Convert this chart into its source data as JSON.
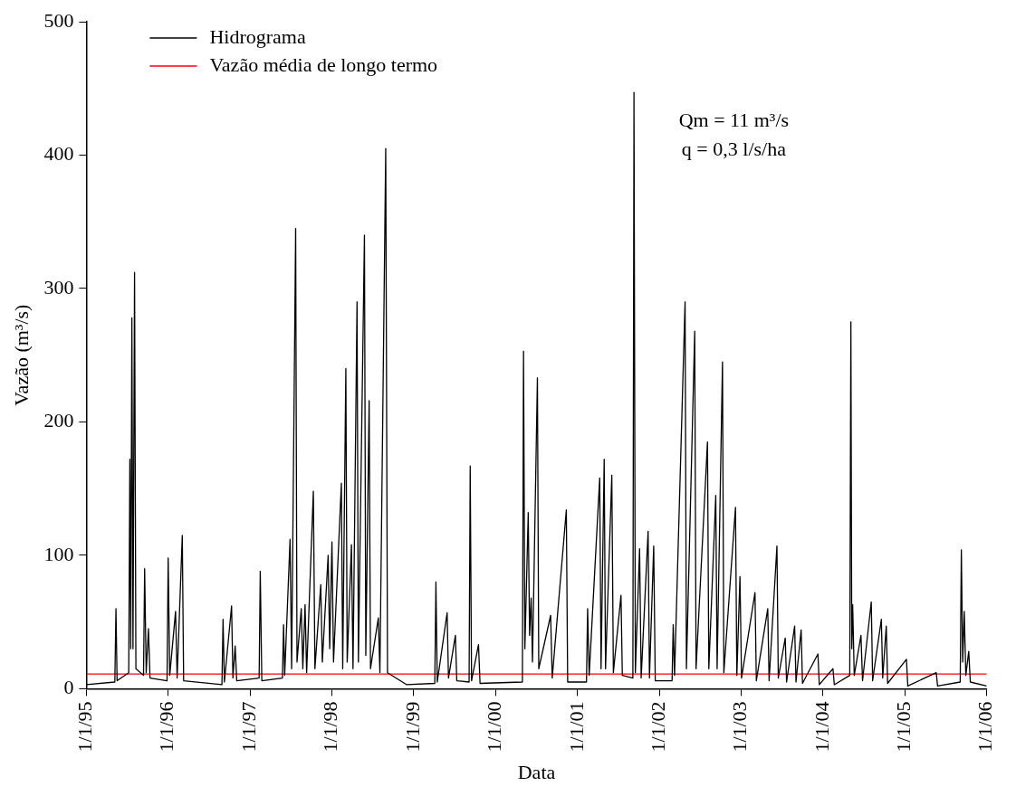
{
  "chart_data": {
    "type": "line",
    "xlabel": "Data",
    "ylabel": "Vazão (m³/s)",
    "annotations": [
      "Qm = 11 m³/s",
      "q = 0,3 l/s/ha"
    ],
    "xlim": [
      "1995-01-01",
      "2006-01-01"
    ],
    "xticks": [
      {
        "value": "1995-01-01",
        "label": "1/1/95"
      },
      {
        "value": "1996-01-01",
        "label": "1/1/96"
      },
      {
        "value": "1997-01-01",
        "label": "1/1/97"
      },
      {
        "value": "1998-01-01",
        "label": "1/1/98"
      },
      {
        "value": "1999-01-01",
        "label": "1/1/99"
      },
      {
        "value": "2000-01-01",
        "label": "1/1/00"
      },
      {
        "value": "2001-01-01",
        "label": "1/1/01"
      },
      {
        "value": "2002-01-01",
        "label": "1/1/02"
      },
      {
        "value": "2003-01-01",
        "label": "1/1/03"
      },
      {
        "value": "2004-01-01",
        "label": "1/1/04"
      },
      {
        "value": "2005-01-01",
        "label": "1/1/05"
      },
      {
        "value": "2006-01-01",
        "label": "1/1/06"
      }
    ],
    "ylim": [
      0,
      500
    ],
    "yticks": [
      0,
      100,
      200,
      300,
      400,
      500
    ],
    "grid": false,
    "legend": "top left",
    "marker": "none",
    "line_style": "solid",
    "series": [
      {
        "name": "Hidrograma",
        "color": "#000000",
        "x": [
          "1995-01-01",
          "1995-05-08",
          "1995-05-13",
          "1995-05-18",
          "1995-07-09",
          "1995-07-14",
          "1995-07-18",
          "1995-07-23",
          "1995-07-28",
          "1995-08-04",
          "1995-08-10",
          "1995-09-13",
          "1995-09-18",
          "1995-09-25",
          "1995-10-05",
          "1995-10-12",
          "1995-12-27",
          "1996-01-01",
          "1996-01-08",
          "1996-02-03",
          "1996-02-10",
          "1996-03-04",
          "1996-03-10",
          "1996-08-28",
          "1996-09-02",
          "1996-09-08",
          "1996-10-10",
          "1996-10-16",
          "1996-10-26",
          "1996-11-02",
          "1997-02-10",
          "1997-02-15",
          "1997-02-22",
          "1997-05-25",
          "1997-05-30",
          "1997-06-04",
          "1997-06-28",
          "1997-07-05",
          "1997-07-23",
          "1997-07-29",
          "1997-08-17",
          "1997-08-24",
          "1997-09-03",
          "1997-09-10",
          "1997-10-10",
          "1997-10-17",
          "1997-11-12",
          "1997-11-19",
          "1997-12-15",
          "1997-12-22",
          "1998-01-01",
          "1998-01-08",
          "1998-02-12",
          "1998-02-18",
          "1998-03-04",
          "1998-03-10",
          "1998-03-29",
          "1998-04-05",
          "1998-04-23",
          "1998-04-29",
          "1998-05-26",
          "1998-06-01",
          "1998-06-16",
          "1998-06-22",
          "1998-07-27",
          "1998-08-03",
          "1998-08-29",
          "1998-09-06",
          "1998-12-01",
          "1999-04-05",
          "1999-04-10",
          "1999-04-16",
          "1999-05-30",
          "1999-06-05",
          "1999-07-06",
          "1999-07-12",
          "1999-09-05",
          "1999-09-10",
          "1999-09-16",
          "1999-10-17",
          "1999-10-24",
          "2000-04-30",
          "2000-05-05",
          "2000-05-11",
          "2000-05-26",
          "2000-06-01",
          "2000-06-08",
          "2000-06-14",
          "2000-07-06",
          "2000-07-12",
          "2000-09-03",
          "2000-09-10",
          "2000-11-12",
          "2000-11-18",
          "2001-02-10",
          "2001-02-15",
          "2001-02-22",
          "2001-04-10",
          "2001-04-16",
          "2001-04-30",
          "2001-05-06",
          "2001-06-03",
          "2001-06-10",
          "2001-07-14",
          "2001-07-20",
          "2001-09-05",
          "2001-09-10",
          "2001-09-16",
          "2001-10-05",
          "2001-10-12",
          "2001-11-12",
          "2001-11-18",
          "2001-12-07",
          "2001-12-14",
          "2002-02-27",
          "2002-03-04",
          "2002-03-10",
          "2002-04-26",
          "2002-05-02",
          "2002-06-08",
          "2002-06-14",
          "2002-08-04",
          "2002-08-10",
          "2002-09-10",
          "2002-09-16",
          "2002-10-10",
          "2002-10-16",
          "2002-12-07",
          "2002-12-13",
          "2002-12-27",
          "2003-01-03",
          "2003-03-04",
          "2003-03-10",
          "2003-04-30",
          "2003-05-06",
          "2003-06-10",
          "2003-06-16",
          "2003-07-17",
          "2003-07-23",
          "2003-08-28",
          "2003-09-03",
          "2003-09-26",
          "2003-10-02",
          "2003-12-10",
          "2003-12-16",
          "2004-02-15",
          "2004-02-21",
          "2004-04-30",
          "2004-05-05",
          "2004-05-09",
          "2004-05-13",
          "2004-05-20",
          "2004-06-19",
          "2004-06-26",
          "2004-08-04",
          "2004-08-10",
          "2004-09-18",
          "2004-09-24",
          "2004-10-10",
          "2004-10-16",
          "2005-01-08",
          "2005-01-14",
          "2005-05-21",
          "2005-05-27",
          "2005-09-05",
          "2005-09-10",
          "2005-09-16",
          "2005-09-23",
          "2005-09-30",
          "2005-10-13",
          "2005-10-20",
          "2006-01-01"
        ],
        "values": [
          3,
          5,
          60,
          6,
          12,
          172,
          30,
          278,
          30,
          312,
          15,
          10,
          90,
          12,
          45,
          8,
          6,
          98,
          10,
          58,
          8,
          115,
          6,
          3,
          52,
          5,
          62,
          8,
          32,
          6,
          8,
          88,
          6,
          8,
          48,
          10,
          112,
          15,
          345,
          20,
          60,
          15,
          63,
          12,
          148,
          15,
          78,
          20,
          100,
          30,
          110,
          20,
          154,
          15,
          240,
          20,
          108,
          15,
          290,
          20,
          340,
          25,
          216,
          15,
          53,
          12,
          405,
          12,
          3,
          4,
          80,
          5,
          57,
          8,
          40,
          6,
          5,
          167,
          6,
          33,
          4,
          5,
          253,
          30,
          132,
          40,
          68,
          20,
          233,
          15,
          55,
          8,
          134,
          5,
          5,
          60,
          10,
          158,
          15,
          172,
          15,
          160,
          12,
          70,
          10,
          8,
          447,
          12,
          105,
          8,
          118,
          8,
          107,
          6,
          6,
          48,
          10,
          290,
          15,
          268,
          15,
          185,
          15,
          145,
          15,
          245,
          12,
          136,
          10,
          84,
          8,
          72,
          6,
          60,
          6,
          107,
          8,
          38,
          5,
          47,
          5,
          44,
          4,
          26,
          3,
          15,
          3,
          10,
          275,
          30,
          63,
          10,
          40,
          6,
          65,
          6,
          52,
          8,
          47,
          4,
          22,
          2,
          12,
          2,
          5,
          104,
          20,
          58,
          10,
          28,
          5,
          2
        ]
      },
      {
        "name": "Vazão média de longo termo",
        "color": "#ff0000",
        "x": [
          "1995-01-01",
          "2006-01-01"
        ],
        "values": [
          11,
          11
        ]
      }
    ]
  }
}
